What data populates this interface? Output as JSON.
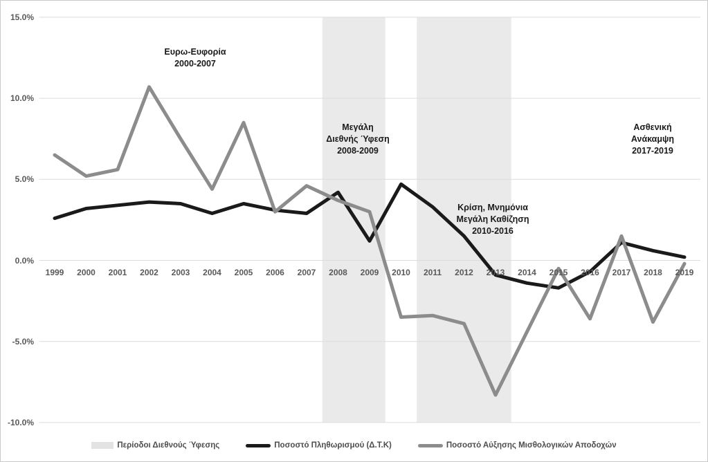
{
  "chart_data": {
    "type": "line",
    "title": "",
    "xlabel": "",
    "ylabel": "",
    "categories": [
      "1999",
      "2000",
      "2001",
      "2002",
      "2003",
      "2004",
      "2005",
      "2006",
      "2007",
      "2008",
      "2009",
      "2010",
      "2011",
      "2012",
      "2013",
      "2014",
      "2015",
      "2016",
      "2017",
      "2018",
      "2019"
    ],
    "y_ticks": [
      {
        "label": "15.0%",
        "value": 15
      },
      {
        "label": "10.0%",
        "value": 10
      },
      {
        "label": "5.0%",
        "value": 5
      },
      {
        "label": "0.0%",
        "value": 0
      },
      {
        "label": "-5.0%",
        "value": -5
      },
      {
        "label": "-10.0%",
        "value": -10
      }
    ],
    "ylim": [
      -10,
      15
    ],
    "grid": true,
    "legend_position": "bottom",
    "series": [
      {
        "id": "inflation-cpi",
        "name": "Ποσοστό Πληθωρισμού (Δ.Τ.Κ)",
        "color": "#1a1a1a",
        "values": [
          2.6,
          3.2,
          3.4,
          3.6,
          3.5,
          2.9,
          3.5,
          3.1,
          2.9,
          4.2,
          1.2,
          4.7,
          3.3,
          1.5,
          -0.9,
          -1.4,
          -1.7,
          -0.7,
          1.1,
          0.6,
          0.2
        ]
      },
      {
        "id": "wage-growth",
        "name": "Ποσοστό Αύξησης Μισθολογικών Αποδοχών",
        "color": "#8c8c8c",
        "values": [
          6.5,
          5.2,
          5.6,
          10.7,
          7.5,
          4.4,
          8.5,
          3.0,
          4.6,
          3.7,
          3.0,
          -3.5,
          -3.4,
          -3.9,
          -8.3,
          -4.4,
          -0.5,
          -3.6,
          1.5,
          -3.8,
          -0.2
        ]
      }
    ],
    "bands": [
      {
        "id": "recession-band-2008-2009",
        "from_year": 2007.5,
        "to_year": 2009.5
      },
      {
        "id": "recession-band-2011-2013",
        "from_year": 2010.5,
        "to_year": 2013.5
      }
    ],
    "band_color": "#eaeaea",
    "gridline_color": "#dcdcdc"
  },
  "annotations": [
    {
      "id": "euro-euphoria",
      "text": "Ευρω-Ευφορία\n2000-2007"
    },
    {
      "id": "great-recession",
      "text": "Μεγάλη\nΔιεθνής Ύφεση\n2008-2009"
    },
    {
      "id": "crisis-memoranda",
      "text": "Κρίση, Μνημόνια\nΜεγάλη Καθίζηση\n2010-2016"
    },
    {
      "id": "weak-recovery",
      "text": "Ασθενική\nΑνάκαμψη\n2017-2019"
    }
  ],
  "legend": {
    "items": [
      {
        "label": "Περίοδοι Διεθνούς Ύφεσης",
        "swatch": "band",
        "color": "#e3e3e3"
      },
      {
        "label": "Ποσοστό Πληθωρισμού (Δ.Τ.Κ)",
        "swatch": "line",
        "color": "#1a1a1a"
      },
      {
        "label": "Ποσοστό Αύξησης Μισθολογικών Αποδοχών",
        "swatch": "line",
        "color": "#8c8c8c"
      }
    ]
  }
}
